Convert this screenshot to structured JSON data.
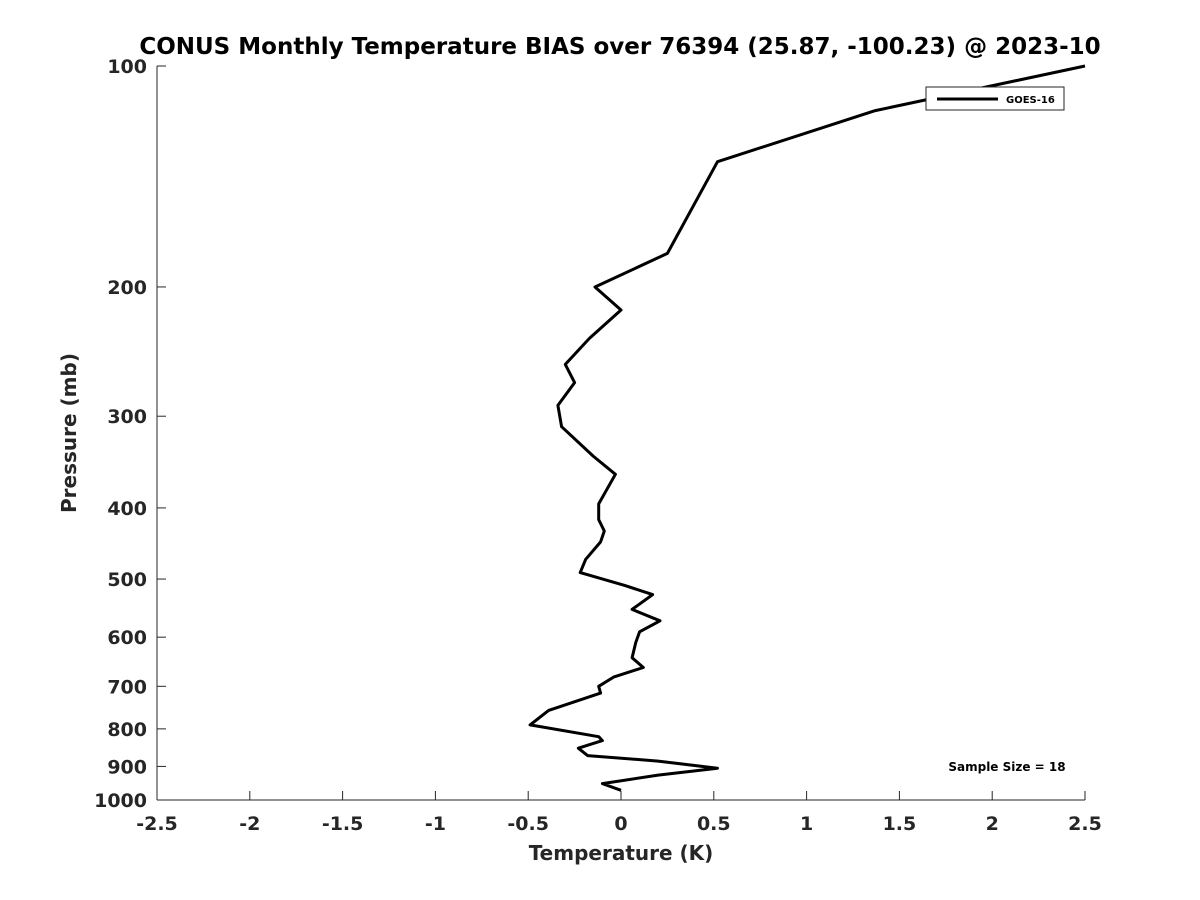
{
  "chart_data": {
    "type": "line",
    "title": "CONUS Monthly Temperature BIAS over 76394 (25.87, -100.23) @ 2023-10",
    "xlabel": "Temperature (K)",
    "ylabel": "Pressure (mb)",
    "xlim": [
      -2.5,
      2.5
    ],
    "ylim": [
      1000,
      100
    ],
    "yscale": "log",
    "y_reversed": true,
    "xticks": [
      "-2.5",
      "-2",
      "-1.5",
      "-1",
      "-0.5",
      "0",
      "0.5",
      "1",
      "1.5",
      "2",
      "2.5"
    ],
    "xtick_values": [
      -2.5,
      -2,
      -1.5,
      -1,
      -0.5,
      0,
      0.5,
      1,
      1.5,
      2,
      2.5
    ],
    "yticks": [
      "100",
      "200",
      "300",
      "400",
      "500",
      "600",
      "700",
      "800",
      "900",
      "1000"
    ],
    "ytick_values": [
      100,
      200,
      300,
      400,
      500,
      600,
      700,
      800,
      900,
      1000
    ],
    "grid": false,
    "legend": "top-right",
    "annotation": "Sample Size = 18",
    "series": [
      {
        "name": "GOES-16",
        "color": "#000000",
        "x": [
          2.5,
          1.37,
          0.52,
          0.25,
          -0.14,
          0.0,
          -0.17,
          -0.3,
          -0.25,
          -0.34,
          -0.32,
          -0.15,
          -0.03,
          -0.12,
          -0.12,
          -0.09,
          -0.11,
          -0.19,
          -0.22,
          0.02,
          0.17,
          0.06,
          0.21,
          0.1,
          0.08,
          0.06,
          0.12,
          -0.04,
          -0.12,
          -0.11,
          -0.39,
          -0.49,
          -0.12,
          -0.1,
          -0.23,
          -0.18,
          0.2,
          0.52,
          0.2,
          -0.1,
          0.0
        ],
        "y": [
          100,
          115,
          135,
          180,
          200,
          215,
          235,
          255,
          270,
          290,
          310,
          340,
          360,
          395,
          415,
          430,
          445,
          470,
          490,
          510,
          525,
          550,
          570,
          590,
          610,
          640,
          660,
          680,
          700,
          715,
          755,
          790,
          820,
          830,
          850,
          870,
          885,
          905,
          925,
          950,
          970
        ]
      }
    ]
  }
}
